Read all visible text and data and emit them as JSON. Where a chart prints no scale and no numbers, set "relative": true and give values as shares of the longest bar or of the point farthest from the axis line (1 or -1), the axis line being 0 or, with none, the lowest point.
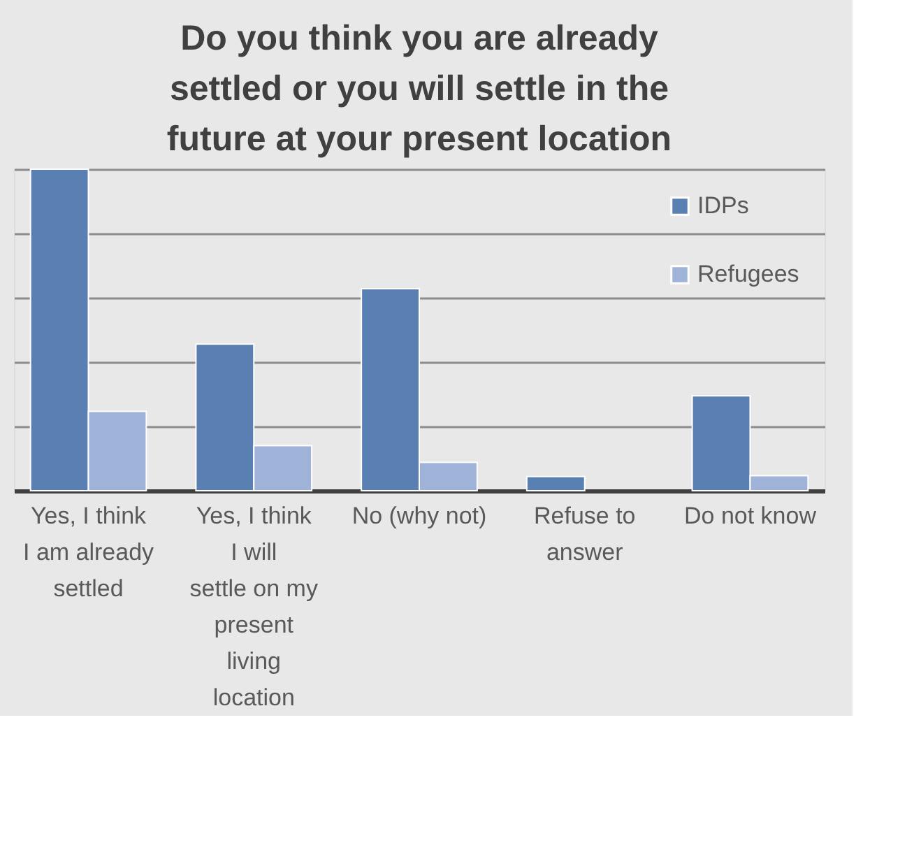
{
  "chart_data": {
    "type": "bar",
    "title": "Do you think you are already settled or you will settle in the future at your present location",
    "categories": [
      "Yes, I think I am already settled",
      "Yes, I think I will settle on my present living location",
      "No (why not)",
      "Refuse to answer",
      "Do not know"
    ],
    "relative": true,
    "grid": "y",
    "legend": "top right",
    "series": [
      {
        "name": "IDPs",
        "color": "#5a7fb3",
        "values": [
          1,
          0.456,
          0.628,
          0.044,
          0.295
        ]
      },
      {
        "name": "Refugees",
        "color": "#9fb2d8",
        "values": [
          0.247,
          0.14,
          0.088,
          null,
          0.047
        ]
      }
    ]
  }
}
